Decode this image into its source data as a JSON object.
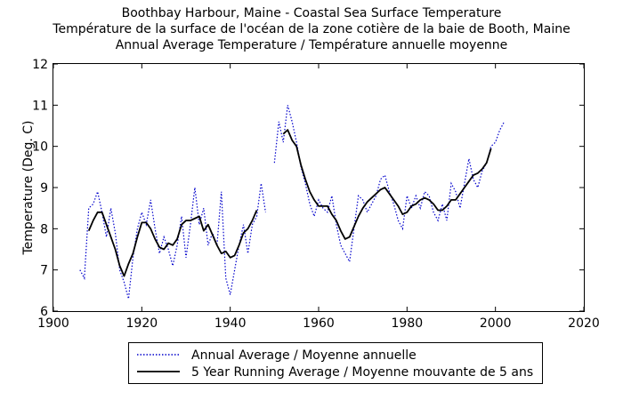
{
  "chart_data": {
    "type": "line",
    "title_lines": [
      "Boothbay Harbour, Maine - Coastal Sea Surface Temperature",
      "Température de la surface de l'océan de la zone cotière de la baie de Booth, Maine",
      "Annual Average Temperature / Température annuelle moyenne"
    ],
    "xlabel": "",
    "ylabel": "Temperature (Deg. C)",
    "xlim": [
      1900,
      2020
    ],
    "ylim": [
      6,
      12
    ],
    "xticks": [
      1900,
      1920,
      1940,
      1960,
      1980,
      2000,
      2020
    ],
    "yticks": [
      6,
      7,
      8,
      9,
      10,
      11,
      12
    ],
    "grid": false,
    "legend_position": "below-plot",
    "series": [
      {
        "name": "Annual Average / Moyenne annuelle",
        "style": "dotted",
        "color": "#0000cc",
        "points": [
          [
            1906,
            7.0
          ],
          [
            1907,
            6.8
          ],
          [
            1908,
            8.5
          ],
          [
            1909,
            8.6
          ],
          [
            1910,
            8.9
          ],
          [
            1911,
            8.4
          ],
          [
            1912,
            7.8
          ],
          [
            1913,
            8.5
          ],
          [
            1914,
            7.9
          ],
          [
            1915,
            7.0
          ],
          [
            1916,
            6.7
          ],
          [
            1917,
            6.3
          ],
          [
            1918,
            7.3
          ],
          [
            1919,
            8.0
          ],
          [
            1920,
            8.4
          ],
          [
            1921,
            8.1
          ],
          [
            1922,
            8.7
          ],
          [
            1923,
            8.0
          ],
          [
            1924,
            7.4
          ],
          [
            1925,
            7.8
          ],
          [
            1926,
            7.5
          ],
          [
            1927,
            7.1
          ],
          [
            1928,
            7.6
          ],
          [
            1929,
            8.3
          ],
          [
            1930,
            7.3
          ],
          [
            1931,
            8.1
          ],
          [
            1932,
            9.0
          ],
          [
            1933,
            8.1
          ],
          [
            1934,
            8.5
          ],
          [
            1935,
            7.6
          ],
          [
            1936,
            7.9
          ],
          [
            1937,
            7.6
          ],
          [
            1938,
            8.9
          ],
          [
            1939,
            6.8
          ],
          [
            1940,
            6.4
          ],
          [
            1941,
            7.0
          ],
          [
            1942,
            7.6
          ],
          [
            1943,
            8.1
          ],
          [
            1944,
            7.4
          ],
          [
            1945,
            8.1
          ],
          [
            1946,
            8.3
          ],
          [
            1947,
            9.1
          ],
          [
            1948,
            8.4
          ],
          null,
          [
            1950,
            9.6
          ],
          [
            1951,
            10.6
          ],
          [
            1952,
            10.1
          ],
          [
            1953,
            11.0
          ],
          [
            1954,
            10.6
          ],
          [
            1955,
            10.1
          ],
          [
            1956,
            9.5
          ],
          [
            1957,
            9.1
          ],
          [
            1958,
            8.6
          ],
          [
            1959,
            8.3
          ],
          [
            1960,
            8.7
          ],
          [
            1961,
            8.5
          ],
          [
            1962,
            8.4
          ],
          [
            1963,
            8.8
          ],
          [
            1964,
            8.1
          ],
          [
            1965,
            7.6
          ],
          [
            1966,
            7.4
          ],
          [
            1967,
            7.2
          ],
          [
            1968,
            8.0
          ],
          [
            1969,
            8.8
          ],
          [
            1970,
            8.7
          ],
          [
            1971,
            8.4
          ],
          [
            1972,
            8.6
          ],
          [
            1973,
            8.8
          ],
          [
            1974,
            9.2
          ],
          [
            1975,
            9.3
          ],
          [
            1976,
            8.9
          ],
          [
            1977,
            8.6
          ],
          [
            1978,
            8.2
          ],
          [
            1979,
            8.0
          ],
          [
            1980,
            8.8
          ],
          [
            1981,
            8.5
          ],
          [
            1982,
            8.8
          ],
          [
            1983,
            8.5
          ],
          [
            1984,
            8.9
          ],
          [
            1985,
            8.8
          ],
          [
            1986,
            8.4
          ],
          [
            1987,
            8.2
          ],
          [
            1988,
            8.6
          ],
          [
            1989,
            8.2
          ],
          [
            1990,
            9.1
          ],
          [
            1991,
            8.9
          ],
          [
            1992,
            8.5
          ],
          [
            1993,
            9.1
          ],
          [
            1994,
            9.7
          ],
          [
            1995,
            9.2
          ],
          [
            1996,
            9.0
          ],
          [
            1997,
            9.4
          ],
          [
            1998,
            9.6
          ],
          [
            1999,
            10.0
          ],
          [
            2000,
            10.1
          ],
          [
            2001,
            10.4
          ],
          [
            2002,
            10.6
          ]
        ]
      },
      {
        "name": "5 Year Running Average / Moyenne mouvante de 5 ans",
        "style": "solid",
        "color": "#000000",
        "points": [
          [
            1908,
            7.95
          ],
          [
            1909,
            8.2
          ],
          [
            1910,
            8.4
          ],
          [
            1911,
            8.4
          ],
          [
            1912,
            8.1
          ],
          [
            1913,
            7.8
          ],
          [
            1914,
            7.5
          ],
          [
            1915,
            7.1
          ],
          [
            1916,
            6.85
          ],
          [
            1917,
            7.15
          ],
          [
            1918,
            7.4
          ],
          [
            1919,
            7.8
          ],
          [
            1920,
            8.15
          ],
          [
            1921,
            8.15
          ],
          [
            1922,
            8.0
          ],
          [
            1923,
            7.75
          ],
          [
            1924,
            7.55
          ],
          [
            1925,
            7.5
          ],
          [
            1926,
            7.65
          ],
          [
            1927,
            7.6
          ],
          [
            1928,
            7.75
          ],
          [
            1929,
            8.1
          ],
          [
            1930,
            8.2
          ],
          [
            1931,
            8.2
          ],
          [
            1932,
            8.25
          ],
          [
            1933,
            8.3
          ],
          [
            1934,
            7.95
          ],
          [
            1935,
            8.1
          ],
          [
            1936,
            7.85
          ],
          [
            1937,
            7.6
          ],
          [
            1938,
            7.4
          ],
          [
            1939,
            7.45
          ],
          [
            1940,
            7.3
          ],
          [
            1941,
            7.35
          ],
          [
            1942,
            7.6
          ],
          [
            1943,
            7.9
          ],
          [
            1944,
            8.0
          ],
          [
            1945,
            8.2
          ],
          [
            1946,
            8.45
          ],
          null,
          [
            1952,
            10.3
          ],
          [
            1953,
            10.4
          ],
          [
            1954,
            10.15
          ],
          [
            1955,
            10.0
          ],
          [
            1956,
            9.55
          ],
          [
            1957,
            9.2
          ],
          [
            1958,
            8.9
          ],
          [
            1959,
            8.7
          ],
          [
            1960,
            8.55
          ],
          [
            1961,
            8.55
          ],
          [
            1962,
            8.55
          ],
          [
            1963,
            8.35
          ],
          [
            1964,
            8.2
          ],
          [
            1965,
            7.95
          ],
          [
            1966,
            7.75
          ],
          [
            1967,
            7.8
          ],
          [
            1968,
            8.05
          ],
          [
            1969,
            8.3
          ],
          [
            1970,
            8.5
          ],
          [
            1971,
            8.65
          ],
          [
            1972,
            8.75
          ],
          [
            1973,
            8.85
          ],
          [
            1974,
            8.95
          ],
          [
            1975,
            9.0
          ],
          [
            1976,
            8.85
          ],
          [
            1977,
            8.7
          ],
          [
            1978,
            8.55
          ],
          [
            1979,
            8.35
          ],
          [
            1980,
            8.4
          ],
          [
            1981,
            8.55
          ],
          [
            1982,
            8.6
          ],
          [
            1983,
            8.7
          ],
          [
            1984,
            8.75
          ],
          [
            1985,
            8.7
          ],
          [
            1986,
            8.6
          ],
          [
            1987,
            8.45
          ],
          [
            1988,
            8.45
          ],
          [
            1989,
            8.55
          ],
          [
            1990,
            8.7
          ],
          [
            1991,
            8.7
          ],
          [
            1992,
            8.85
          ],
          [
            1993,
            9.0
          ],
          [
            1994,
            9.15
          ],
          [
            1995,
            9.3
          ],
          [
            1996,
            9.35
          ],
          [
            1997,
            9.45
          ],
          [
            1998,
            9.6
          ],
          [
            1999,
            9.95
          ]
        ]
      }
    ]
  }
}
